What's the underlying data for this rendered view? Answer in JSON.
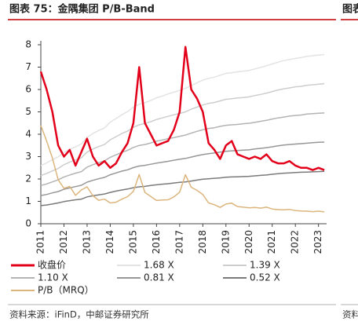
{
  "chart_data": {
    "type": "line",
    "title": "图表 75：金隅集团 P/B-Band",
    "source": "资料来源：iFinD，中邮证券研究所",
    "fragment_title": "图表",
    "fragment_source": "资料",
    "x": [
      2011,
      2011.25,
      2011.5,
      2011.75,
      2012,
      2012.25,
      2012.5,
      2012.75,
      2013,
      2013.25,
      2013.5,
      2013.75,
      2014,
      2014.25,
      2014.5,
      2014.75,
      2015,
      2015.25,
      2015.5,
      2015.75,
      2016,
      2016.25,
      2016.5,
      2016.75,
      2017,
      2017.25,
      2017.5,
      2017.75,
      2018,
      2018.25,
      2018.5,
      2018.75,
      2019,
      2019.25,
      2019.5,
      2019.75,
      2020,
      2020.25,
      2020.5,
      2020.75,
      2021,
      2021.25,
      2021.5,
      2021.75,
      2022,
      2022.25,
      2022.5,
      2022.75,
      2023,
      2023.25
    ],
    "xlim": [
      2011,
      2023.35
    ],
    "xticks": [
      2011,
      2012,
      2013,
      2014,
      2015,
      2016,
      2017,
      2018,
      2019,
      2020,
      2021,
      2022,
      2023
    ],
    "ylim": [
      0,
      8
    ],
    "yticks": [
      0,
      1,
      2,
      3,
      4,
      5,
      6,
      7,
      8
    ],
    "series": [
      {
        "name": "1.68 X",
        "color": "#e3e3e3",
        "width": 1.5,
        "values": [
          2.6,
          2.72,
          2.86,
          2.99,
          3.19,
          3.33,
          3.44,
          3.56,
          3.86,
          4.03,
          4.17,
          4.28,
          4.54,
          4.7,
          4.87,
          5.01,
          5.21,
          5.34,
          5.41,
          5.51,
          5.63,
          5.71,
          5.8,
          5.88,
          5.96,
          6.05,
          6.18,
          6.3,
          6.42,
          6.5,
          6.55,
          6.64,
          6.72,
          6.75,
          6.79,
          6.82,
          6.85,
          6.92,
          6.99,
          7.06,
          7.14,
          7.22,
          7.29,
          7.34,
          7.39,
          7.43,
          7.48,
          7.51,
          7.54,
          7.56
        ]
      },
      {
        "name": "1.39 X",
        "color": "#cdcdcd",
        "width": 1.5,
        "values": [
          2.15,
          2.25,
          2.36,
          2.47,
          2.64,
          2.75,
          2.85,
          2.95,
          3.2,
          3.34,
          3.45,
          3.54,
          3.75,
          3.89,
          4.03,
          4.14,
          4.31,
          4.42,
          4.48,
          4.56,
          4.66,
          4.73,
          4.8,
          4.87,
          4.93,
          5.0,
          5.12,
          5.21,
          5.31,
          5.38,
          5.42,
          5.49,
          5.56,
          5.59,
          5.62,
          5.64,
          5.67,
          5.73,
          5.78,
          5.84,
          5.91,
          5.98,
          6.03,
          6.07,
          6.12,
          6.14,
          6.19,
          6.21,
          6.24,
          6.26
        ]
      },
      {
        "name": "1.10 X",
        "color": "#b3b3b3",
        "width": 1.5,
        "values": [
          1.71,
          1.78,
          1.87,
          1.96,
          2.09,
          2.18,
          2.26,
          2.33,
          2.53,
          2.64,
          2.73,
          2.81,
          2.97,
          3.08,
          3.19,
          3.28,
          3.41,
          3.5,
          3.54,
          3.61,
          3.69,
          3.74,
          3.8,
          3.85,
          3.91,
          3.96,
          4.05,
          4.13,
          4.2,
          4.26,
          4.29,
          4.35,
          4.4,
          4.42,
          4.44,
          4.47,
          4.49,
          4.53,
          4.58,
          4.62,
          4.68,
          4.73,
          4.77,
          4.81,
          4.84,
          4.86,
          4.9,
          4.92,
          4.94,
          4.95
        ]
      },
      {
        "name": "0.81 X",
        "color": "#979797",
        "width": 1.5,
        "values": [
          1.26,
          1.31,
          1.38,
          1.44,
          1.54,
          1.6,
          1.66,
          1.72,
          1.86,
          1.94,
          2.01,
          2.07,
          2.19,
          2.27,
          2.35,
          2.41,
          2.51,
          2.58,
          2.61,
          2.66,
          2.71,
          2.75,
          2.79,
          2.84,
          2.88,
          2.92,
          2.98,
          3.04,
          3.09,
          3.13,
          3.16,
          3.2,
          3.24,
          3.26,
          3.27,
          3.29,
          3.3,
          3.34,
          3.37,
          3.4,
          3.44,
          3.48,
          3.52,
          3.54,
          3.56,
          3.58,
          3.6,
          3.62,
          3.64,
          3.65
        ]
      },
      {
        "name": "0.52 X",
        "color": "#7a7a7a",
        "width": 1.5,
        "values": [
          0.81,
          0.84,
          0.88,
          0.93,
          0.99,
          1.03,
          1.07,
          1.1,
          1.2,
          1.25,
          1.29,
          1.33,
          1.4,
          1.46,
          1.51,
          1.55,
          1.61,
          1.65,
          1.67,
          1.71,
          1.74,
          1.77,
          1.79,
          1.82,
          1.85,
          1.87,
          1.91,
          1.95,
          1.99,
          2.01,
          2.03,
          2.05,
          2.08,
          2.09,
          2.1,
          2.11,
          2.12,
          2.14,
          2.16,
          2.18,
          2.21,
          2.24,
          2.26,
          2.27,
          2.29,
          2.3,
          2.31,
          2.32,
          2.33,
          2.34
        ]
      },
      {
        "name": "P/B（MRQ）",
        "color": "#dcb57c",
        "width": 1.5,
        "values": [
          4.39,
          3.7,
          2.94,
          1.97,
          1.58,
          1.67,
          1.27,
          1.51,
          1.65,
          1.25,
          1.05,
          1.1,
          0.93,
          0.96,
          1.1,
          1.21,
          1.45,
          2.2,
          1.4,
          1.22,
          1.04,
          1.06,
          1.07,
          1.2,
          1.41,
          2.19,
          1.63,
          1.49,
          1.31,
          0.93,
          0.85,
          0.73,
          0.88,
          0.92,
          0.77,
          0.74,
          0.71,
          0.73,
          0.7,
          0.74,
          0.66,
          0.63,
          0.62,
          0.64,
          0.59,
          0.57,
          0.56,
          0.54,
          0.56,
          0.53
        ]
      },
      {
        "name": "收盘价",
        "color": "#e2001a",
        "width": 2.5,
        "values": [
          6.8,
          6.0,
          5.0,
          3.5,
          3.0,
          3.3,
          2.6,
          3.2,
          3.8,
          3.0,
          2.6,
          2.8,
          2.5,
          2.7,
          3.2,
          3.6,
          4.5,
          7.0,
          4.5,
          4.0,
          3.5,
          3.6,
          3.7,
          4.2,
          5.0,
          7.9,
          6.0,
          5.6,
          5.0,
          3.6,
          3.3,
          2.9,
          3.5,
          3.7,
          3.1,
          3.0,
          2.9,
          3.0,
          2.9,
          3.1,
          2.8,
          2.7,
          2.7,
          2.8,
          2.6,
          2.5,
          2.5,
          2.4,
          2.5,
          2.4
        ]
      }
    ],
    "legend_order": [
      6,
      0,
      1,
      2,
      3,
      4,
      5
    ]
  }
}
